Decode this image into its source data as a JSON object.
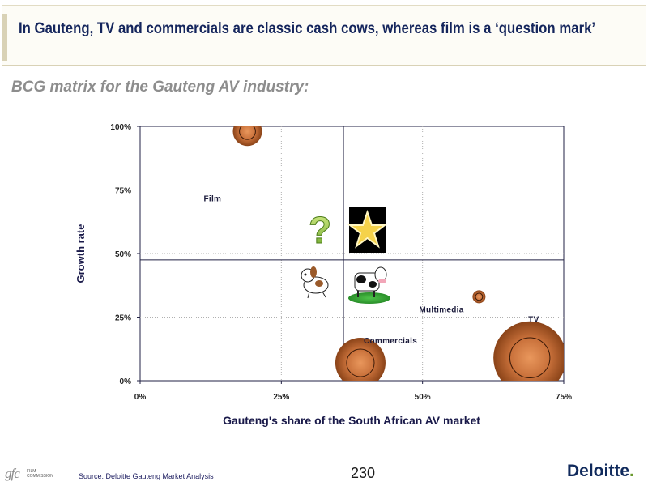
{
  "header": {
    "title": "In Gauteng, TV and commercials are classic cash cows, whereas film is a ‘question mark’"
  },
  "subtitle": "BCG matrix for the Gauteng AV industry:",
  "chart_data": {
    "type": "bubble",
    "xlabel": "Gauteng's share of the South African AV market",
    "ylabel": "Growth rate",
    "xlim": [
      0,
      75
    ],
    "ylim": [
      0,
      100
    ],
    "x_ticks": [
      "0%",
      "25%",
      "50%",
      "75%"
    ],
    "y_ticks": [
      "0%",
      "25%",
      "50%",
      "75%",
      "100%"
    ],
    "grid": "dotted",
    "divider": {
      "x": 36,
      "y": 47.5
    },
    "series": [
      {
        "name": "Film",
        "x": 19,
        "y": 98,
        "size": 2.5
      },
      {
        "name": "Multimedia",
        "x": 60,
        "y": 33,
        "size": 1
      },
      {
        "name": "Commercials",
        "x": 39,
        "y": 7,
        "size": 4.5
      },
      {
        "name": "TV",
        "x": 69,
        "y": 9,
        "size": 10
      }
    ],
    "quadrant_icons": [
      "question-mark",
      "star",
      "dog",
      "cash-cow"
    ]
  },
  "colors": {
    "bubble": "#c8703a",
    "bubble_dark": "#7a3a14",
    "axis": "#222244"
  },
  "footer": {
    "source": "Source: Deloitte Gauteng Market Analysis",
    "page_number": "230",
    "brand": "Deloitte",
    "left_logo_text": "gfc",
    "left_logo_caption": "FILM COMMISSION"
  }
}
